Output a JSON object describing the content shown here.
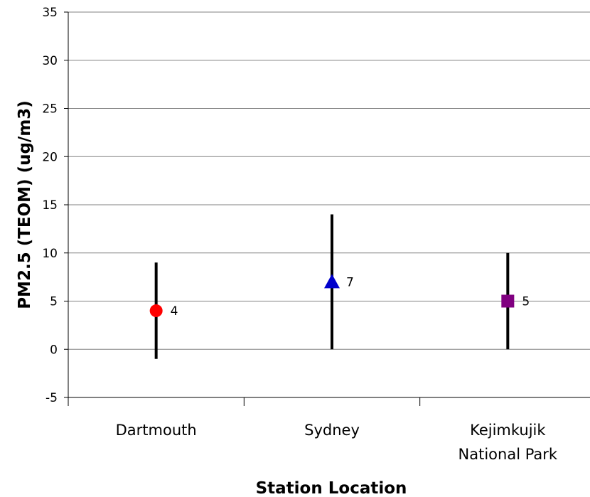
{
  "chart_data": {
    "type": "scatter",
    "title": "",
    "xlabel": "Station Location",
    "ylabel": "PM2.5 (TEOM) (ug/m3)",
    "ylim": [
      -5,
      35
    ],
    "yticks": [
      -5,
      0,
      5,
      10,
      15,
      20,
      25,
      30,
      35
    ],
    "grid": true,
    "legend": "none",
    "categories": [
      {
        "lines": [
          "Dartmouth"
        ]
      },
      {
        "lines": [
          "Sydney"
        ]
      },
      {
        "lines": [
          "Kejimkujik",
          "National Park"
        ]
      }
    ],
    "points": [
      {
        "category": "Dartmouth",
        "value": 4,
        "label": "4",
        "low": -1,
        "high": 9,
        "marker": "circle",
        "color": "#ff0000"
      },
      {
        "category": "Sydney",
        "value": 7,
        "label": "7",
        "low": 0,
        "high": 14,
        "marker": "triangle",
        "color": "#0000cc"
      },
      {
        "category": "Kejimkujik National Park",
        "value": 5,
        "label": "5",
        "low": 0,
        "high": 10,
        "marker": "square",
        "color": "#800080"
      }
    ]
  }
}
